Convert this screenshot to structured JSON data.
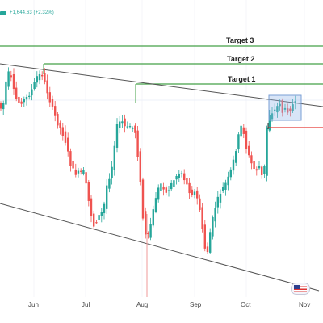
{
  "header": {
    "price_change": "+1,644.63 (+2.32%)"
  },
  "targets": [
    {
      "label": "Target 3"
    },
    {
      "label": "Target 2"
    },
    {
      "label": "Target 1"
    }
  ],
  "x_axis": {
    "labels": [
      "Jun",
      "Jul",
      "Aug",
      "Sep",
      "Oct",
      "Nov"
    ]
  },
  "colors": {
    "up": "#26a69a",
    "down": "#ef5350",
    "target_line": "#43a047",
    "stop_line": "#e53935",
    "trend_line": "#555555",
    "box": "#90b4e8"
  },
  "icons": {
    "currency_flag": "us-flag-icon"
  },
  "chart_data": {
    "type": "candlestick",
    "x_ticks": [
      "Jun",
      "Jul",
      "Aug",
      "Sep",
      "Oct",
      "Nov"
    ],
    "levels": [
      {
        "name": "Target 3"
      },
      {
        "name": "Target 2"
      },
      {
        "name": "Target 1"
      }
    ]
  }
}
